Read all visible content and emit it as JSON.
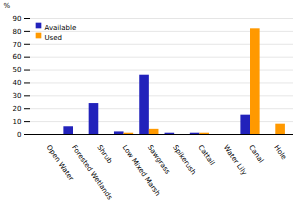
{
  "chart_data": {
    "type": "bar",
    "categories": [
      "Open Water",
      "Forested Wetlands",
      "Shrub",
      "Low Mixed Marsh",
      "Sawgrass",
      "Spikerush",
      "Cattail",
      "Water Lily",
      "Canal",
      "Hole"
    ],
    "series": [
      {
        "name": "Available",
        "color": "#2222bb",
        "values": [
          0,
          6,
          24,
          2,
          46,
          1,
          1,
          0,
          15,
          0
        ]
      },
      {
        "name": "Used",
        "color": "#ff9900",
        "values": [
          0,
          0,
          0,
          1,
          4,
          0,
          1,
          0,
          82,
          8
        ]
      }
    ],
    "ylabel": "%",
    "ylim": [
      0,
      90
    ],
    "yticks": [
      0,
      10,
      20,
      30,
      40,
      50,
      60,
      70,
      80,
      90
    ],
    "grid": true,
    "legend": "upper left"
  }
}
